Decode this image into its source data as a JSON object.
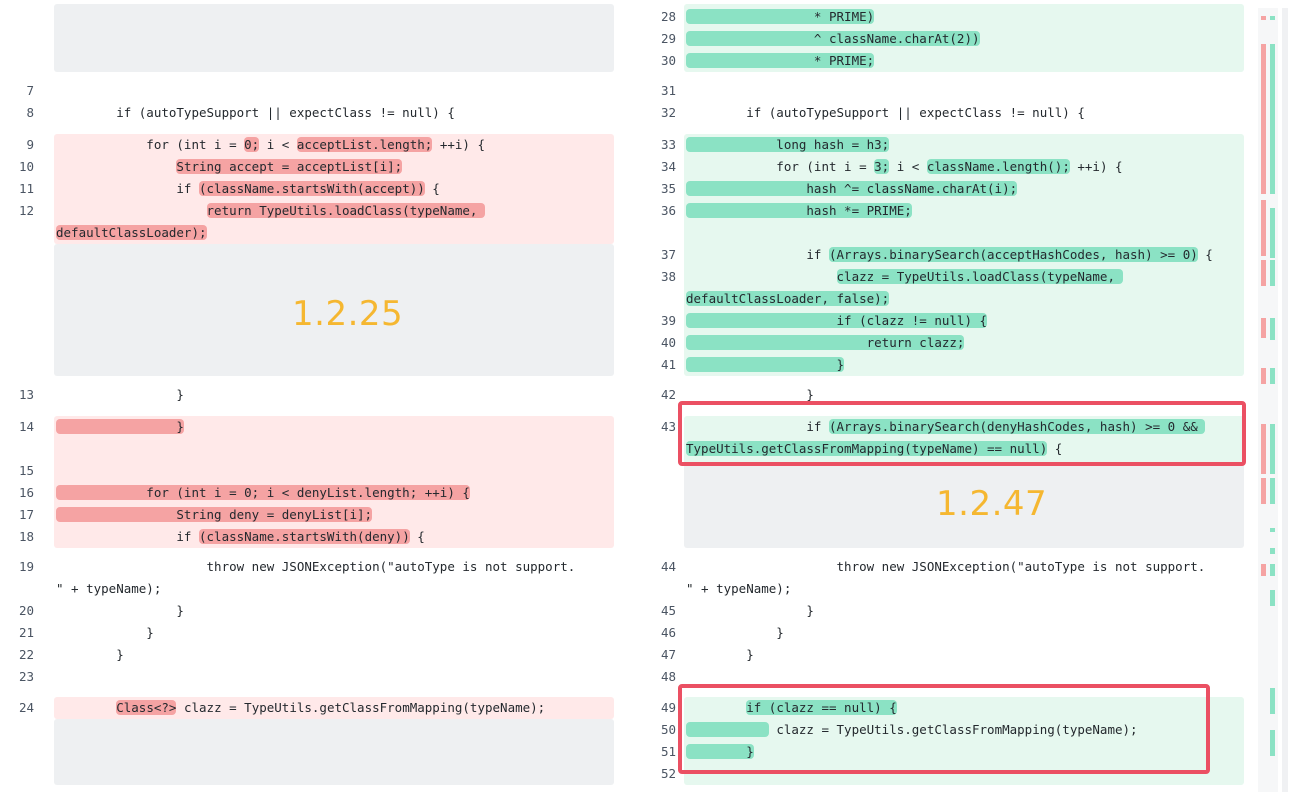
{
  "left": {
    "version_label": "1.2.25",
    "lines": [
      {
        "n": "7",
        "text": ""
      },
      {
        "n": "8",
        "text": "        if (autoTypeSupport || expectClass != null) {"
      },
      {
        "n": "9",
        "pre": "            for (int i = ",
        "hl1": "0;",
        "mid": " i < ",
        "hl2": "acceptList.length;",
        "post": " ++i) {"
      },
      {
        "n": "10",
        "pre": "                ",
        "hl1": "String accept = acceptList[i];",
        "post": ""
      },
      {
        "n": "11",
        "pre": "                if ",
        "hl1": "(className.startsWith(accept))",
        "post": " {"
      },
      {
        "n": "12",
        "pre": "                    ",
        "hl1": "return TypeUtils.loadClass(typeName, ",
        "post": ""
      },
      {
        "n": "",
        "pre": "",
        "hl1": "defaultClassLoader);",
        "post": ""
      },
      {
        "n": "13",
        "text": "                }"
      },
      {
        "n": "14",
        "pre": "",
        "hl1": "                }",
        "post": ""
      },
      {
        "n": "15",
        "text": ""
      },
      {
        "n": "16",
        "pre": "",
        "hl1": "            for (int i = 0; i < denyList.length; ++i) {",
        "post": ""
      },
      {
        "n": "17",
        "pre": "",
        "hl1": "                String deny = denyList[i];",
        "post": ""
      },
      {
        "n": "18",
        "pre": "                if ",
        "hl1": "(className.startsWith(deny))",
        "post": " {"
      },
      {
        "n": "19",
        "text": "                    throw new JSONException(\"autoType is not support."
      },
      {
        "n": "",
        "text": "\" + typeName);"
      },
      {
        "n": "20",
        "text": "                }"
      },
      {
        "n": "21",
        "text": "            }"
      },
      {
        "n": "22",
        "text": "        }"
      },
      {
        "n": "23",
        "text": ""
      },
      {
        "n": "24",
        "pre": "        ",
        "hl1": "Class<?>",
        "post": " clazz = TypeUtils.getClassFromMapping(typeName);"
      }
    ]
  },
  "right": {
    "version_label": "1.2.47",
    "lines": [
      {
        "n": "28",
        "pre": "",
        "hl1": "                 * PRIME)",
        "post": ""
      },
      {
        "n": "29",
        "pre": "",
        "hl1": "                 ^ className.charAt(2))",
        "post": ""
      },
      {
        "n": "30",
        "pre": "",
        "hl1": "                 * PRIME;",
        "post": ""
      },
      {
        "n": "31",
        "text": ""
      },
      {
        "n": "32",
        "text": "        if (autoTypeSupport || expectClass != null) {"
      },
      {
        "n": "33",
        "pre": "",
        "hl1": "            long hash = h3;",
        "post": ""
      },
      {
        "n": "34",
        "pre": "            for (int i = ",
        "hl1": "3;",
        "mid": " i < ",
        "hl2": "className.length();",
        "post": " ++i) {"
      },
      {
        "n": "35",
        "pre": "",
        "hl1": "                hash ^= className.charAt(i);",
        "post": ""
      },
      {
        "n": "36",
        "pre": "",
        "hl1": "                hash *= PRIME;",
        "post": ""
      },
      {
        "n": "37",
        "pre": "                if ",
        "hl1": "(Arrays.binarySearch(acceptHashCodes, hash) >= 0)",
        "post": " {"
      },
      {
        "n": "38",
        "pre": "                    ",
        "hl1": "clazz = TypeUtils.loadClass(typeName, ",
        "post": ""
      },
      {
        "n": "",
        "pre": "",
        "hl1": "defaultClassLoader, false);",
        "post": ""
      },
      {
        "n": "39",
        "pre": "",
        "hl1": "                    if (clazz != null) {",
        "post": ""
      },
      {
        "n": "40",
        "pre": "",
        "hl1": "                        return clazz;",
        "post": ""
      },
      {
        "n": "41",
        "pre": "",
        "hl1": "                    }",
        "post": ""
      },
      {
        "n": "42",
        "text": "                }"
      },
      {
        "n": "43",
        "pre": "                if ",
        "hl1": "(Arrays.binarySearch(denyHashCodes, hash) >= 0 && ",
        "post": ""
      },
      {
        "n": "",
        "pre": "",
        "hl1": "TypeUtils.getClassFromMapping(typeName) == null)",
        "post": " {"
      },
      {
        "n": "44",
        "text": "                    throw new JSONException(\"autoType is not support."
      },
      {
        "n": "",
        "text": "\" + typeName);"
      },
      {
        "n": "45",
        "text": "                }"
      },
      {
        "n": "46",
        "text": "            }"
      },
      {
        "n": "47",
        "text": "        }"
      },
      {
        "n": "48",
        "text": ""
      },
      {
        "n": "49",
        "pre": "        ",
        "hl1": "if (clazz == null) {",
        "post": ""
      },
      {
        "n": "50",
        "pre": "",
        "hl1": "           ",
        "post": " clazz = TypeUtils.getClassFromMapping(typeName);"
      },
      {
        "n": "51",
        "pre": "",
        "hl1": "        }",
        "post": ""
      },
      {
        "n": "52",
        "text": ""
      }
    ]
  },
  "colors": {
    "deleted_bg": "#ffe9e9",
    "deleted_hl": "#f5a3a3",
    "added_bg": "#e6f8ef",
    "added_hl": "#8be2c4",
    "placeholder_bg": "#eef0f2",
    "version_label": "#f5b731",
    "callout_border": "#eb5063"
  }
}
